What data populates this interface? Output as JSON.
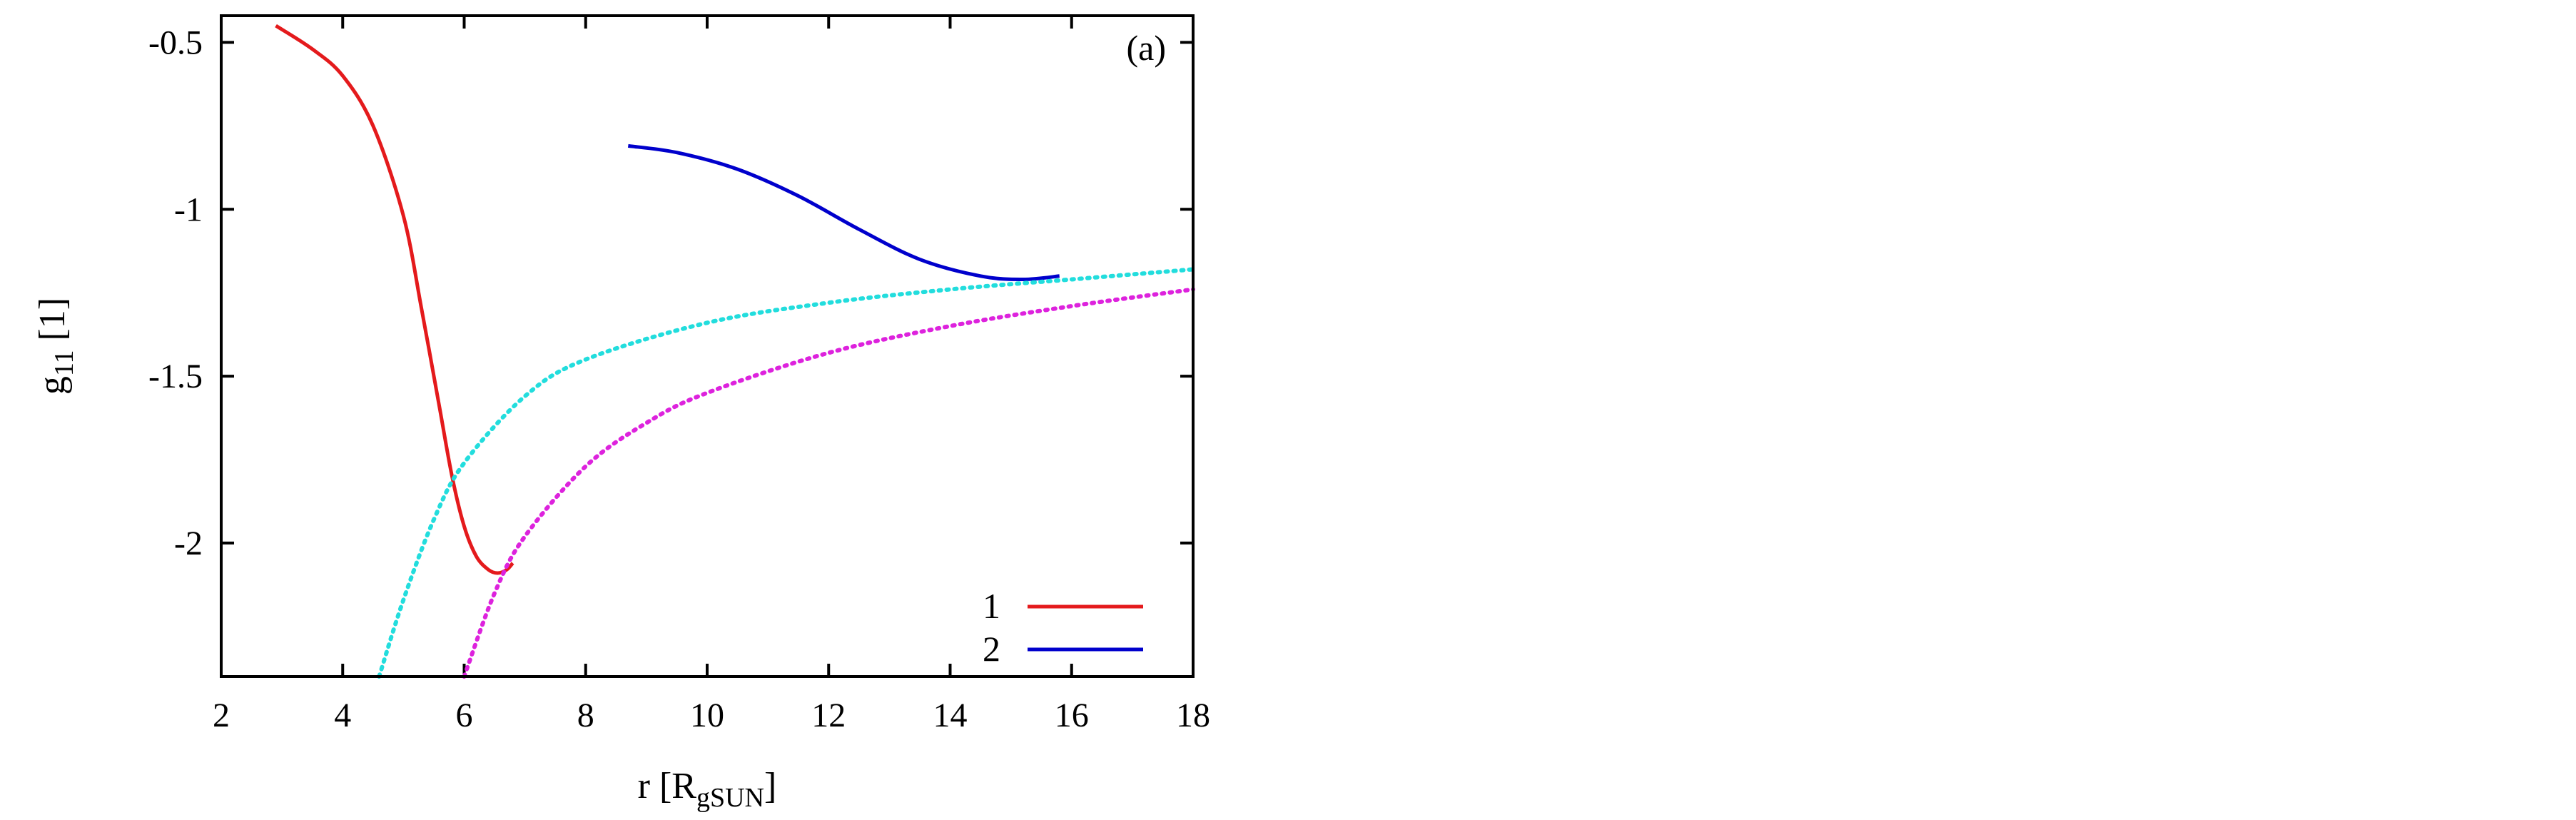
{
  "chart_data": {
    "type": "line",
    "panel_label": "(a)",
    "ylabel": {
      "main": "g",
      "sub": "11",
      "unit": " [1]"
    },
    "xlabel": {
      "main": "r [R",
      "sub": "gSUN",
      "unit": "]"
    },
    "xlim": [
      2,
      18
    ],
    "ylim": [
      -2.4,
      -0.42
    ],
    "x_ticks": [
      2,
      4,
      6,
      8,
      10,
      12,
      14,
      16,
      18
    ],
    "x_tick_labels": [
      "2",
      "4",
      "6",
      "8",
      "10",
      "12",
      "14",
      "16",
      "18"
    ],
    "y_ticks": [
      -0.5,
      -1,
      -1.5,
      -2
    ],
    "y_tick_labels": [
      "-0.5",
      "-1",
      "-1.5",
      "-2"
    ],
    "legend": {
      "position": "bottom-right"
    },
    "series": [
      {
        "name": "1",
        "color": "#e41a1c",
        "style": "solid",
        "x": [
          2.9,
          3.5,
          4.0,
          4.5,
          5.0,
          5.3,
          5.6,
          5.8,
          6.0,
          6.2,
          6.4,
          6.55,
          6.7,
          6.8
        ],
        "y": [
          -0.45,
          -0.52,
          -0.6,
          -0.75,
          -1.02,
          -1.3,
          -1.6,
          -1.8,
          -1.95,
          -2.04,
          -2.08,
          -2.09,
          -2.08,
          -2.06
        ]
      },
      {
        "name": "2",
        "color": "#0000cc",
        "style": "solid",
        "x": [
          8.7,
          9.5,
          10.5,
          11.5,
          12.5,
          13.5,
          14.5,
          15.2,
          15.8
        ],
        "y": [
          -0.81,
          -0.83,
          -0.88,
          -0.96,
          -1.06,
          -1.15,
          -1.2,
          -1.21,
          -1.2
        ]
      },
      {
        "name": "",
        "color": "#22dddd",
        "style": "dotted",
        "x": [
          4.6,
          5.0,
          5.5,
          6.0,
          7.0,
          8.0,
          10.0,
          12.0,
          14.0,
          16.0,
          18.0
        ],
        "y": [
          -2.4,
          -2.17,
          -1.93,
          -1.76,
          -1.56,
          -1.45,
          -1.34,
          -1.28,
          -1.24,
          -1.21,
          -1.18
        ]
      },
      {
        "name": "",
        "color": "#dd22dd",
        "style": "dotted",
        "x": [
          6.0,
          6.5,
          7.0,
          8.0,
          9.0,
          10.0,
          12.0,
          14.0,
          16.0,
          18.0
        ],
        "y": [
          -2.4,
          -2.15,
          -1.98,
          -1.77,
          -1.64,
          -1.55,
          -1.43,
          -1.35,
          -1.29,
          -1.24
        ]
      }
    ]
  }
}
